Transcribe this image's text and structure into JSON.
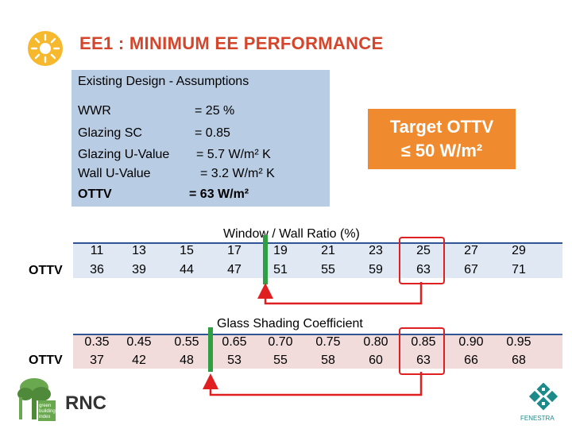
{
  "title": "EE1 : MINIMUM EE PERFORMANCE",
  "assumptions": {
    "heading": "Existing Design - Assumptions",
    "rows": [
      {
        "label": "WWR",
        "value": "= 25 %"
      },
      {
        "label": "Glazing SC",
        "value": "= 0.85"
      },
      {
        "label": "Glazing U-Value",
        "value": "= 5.7 W/m² K"
      },
      {
        "label": "Wall U-Value",
        "value": "= 3.2 W/m² K"
      },
      {
        "label": "OTTV",
        "value": "= 63 W/m²"
      }
    ]
  },
  "target": {
    "line1": "Target OTTV",
    "line2": "≤ 50 W/m²"
  },
  "table1": {
    "axis_label": "Window / Wall Ratio (%)",
    "row_label": "OTTV",
    "x": [
      "11",
      "13",
      "15",
      "17",
      "19",
      "21",
      "23",
      "25",
      "27",
      "29"
    ],
    "ottv": [
      "36",
      "39",
      "44",
      "47",
      "51",
      "55",
      "59",
      "63",
      "67",
      "71"
    ]
  },
  "table2": {
    "axis_label": "Glass Shading Coefficient",
    "row_label": "OTTV",
    "x": [
      "0.35",
      "0.45",
      "0.55",
      "0.65",
      "0.70",
      "0.75",
      "0.80",
      "0.85",
      "0.90",
      "0.95"
    ],
    "ottv": [
      "37",
      "42",
      "48",
      "53",
      "55",
      "58",
      "60",
      "63",
      "66",
      "68"
    ]
  },
  "logo_left_text": "RNC",
  "logo_right_text": "FENESTRA",
  "colors": {
    "title": "#d4452b",
    "target_bg": "#ef8a2e",
    "assumptions_bg": "#b8cce4",
    "highlight_red": "#e02020",
    "highlight_green": "#2ea043"
  }
}
